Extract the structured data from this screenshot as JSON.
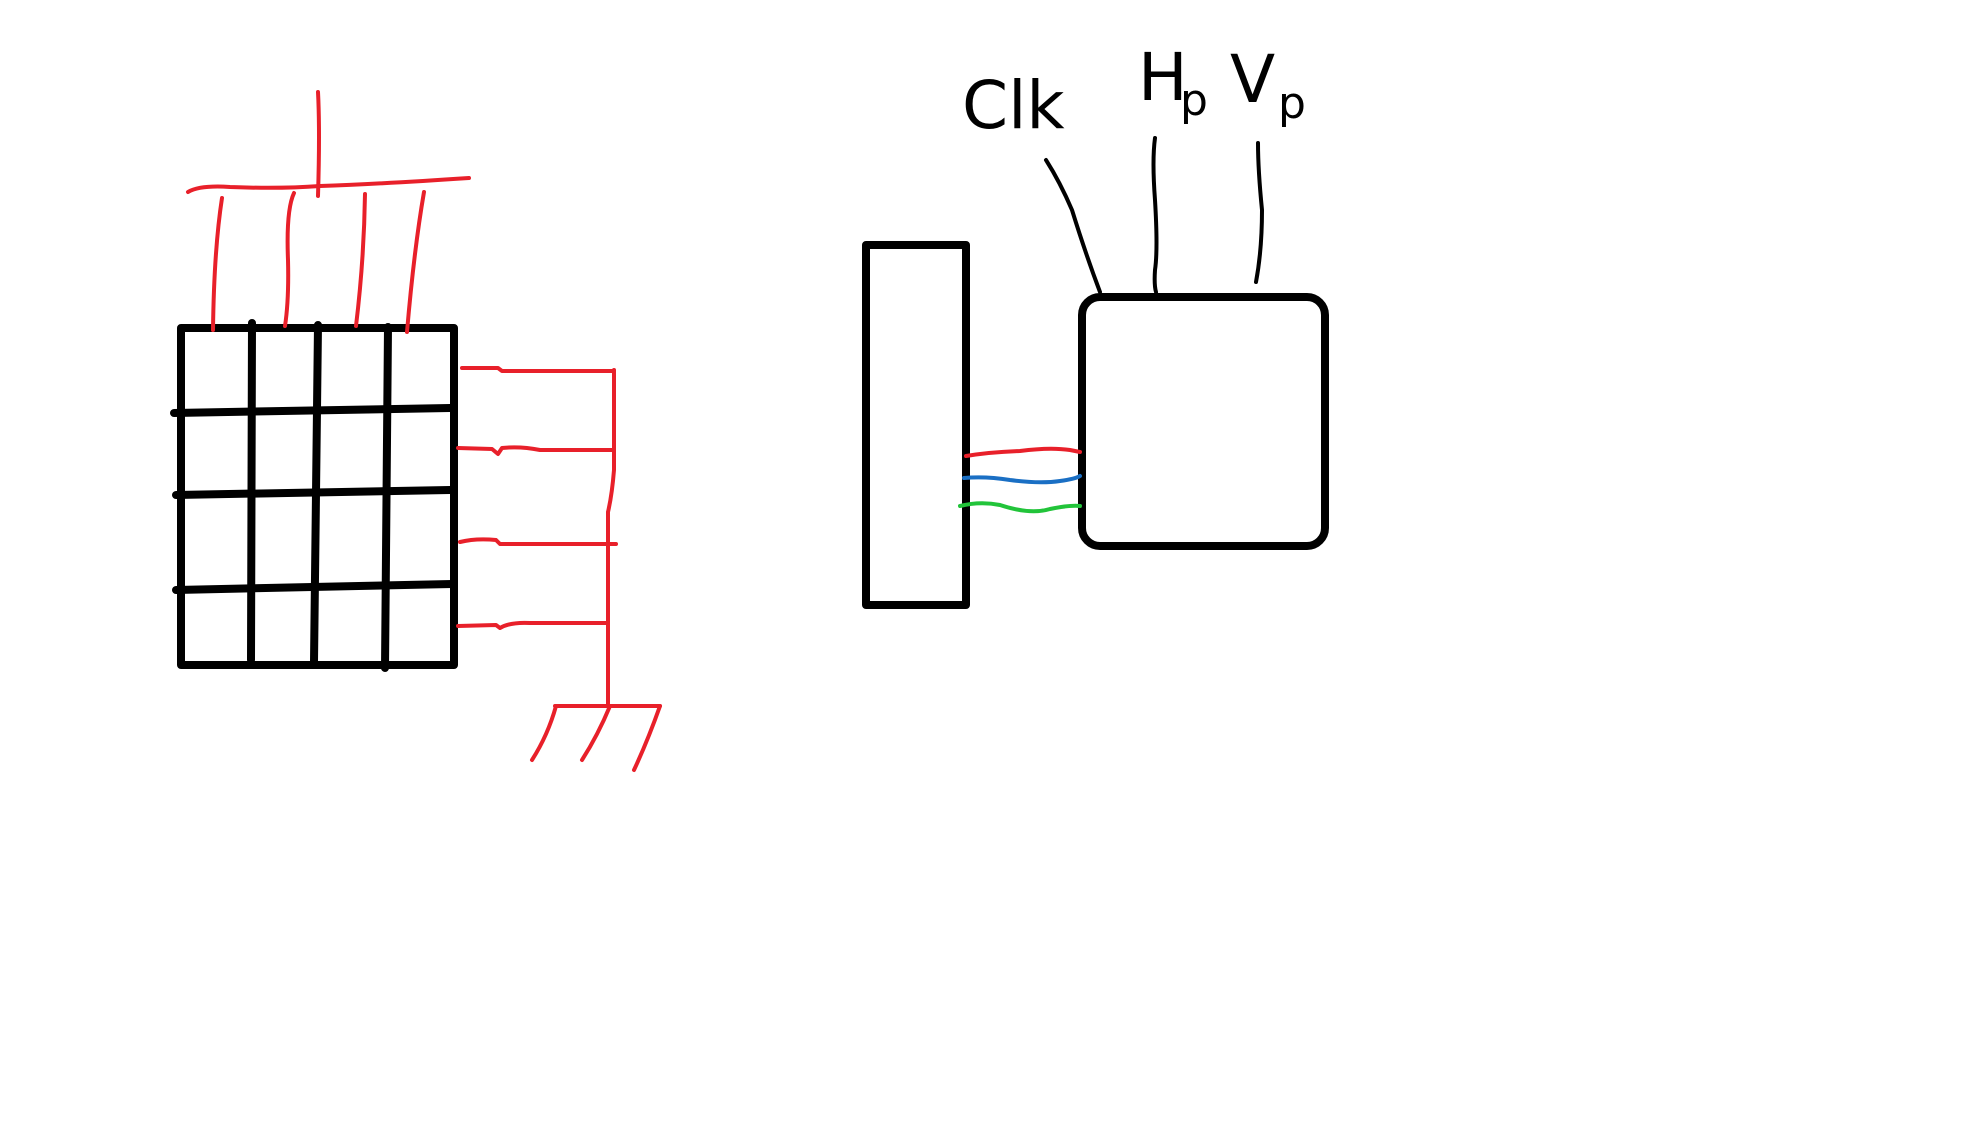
{
  "diagram": {
    "labels": {
      "clk": "Clk",
      "hp_main": "H",
      "hp_sub": "p",
      "vp_main": "V",
      "vp_sub": "p"
    },
    "colors": {
      "outline": "#000000",
      "wire_red": "#e8202a",
      "wire_blue": "#1a6fc4",
      "wire_green": "#22c43a",
      "background": "#ffffff"
    },
    "grid": {
      "rows": 4,
      "cols": 4
    },
    "icons": {
      "ground": "ground-symbol-icon"
    }
  }
}
